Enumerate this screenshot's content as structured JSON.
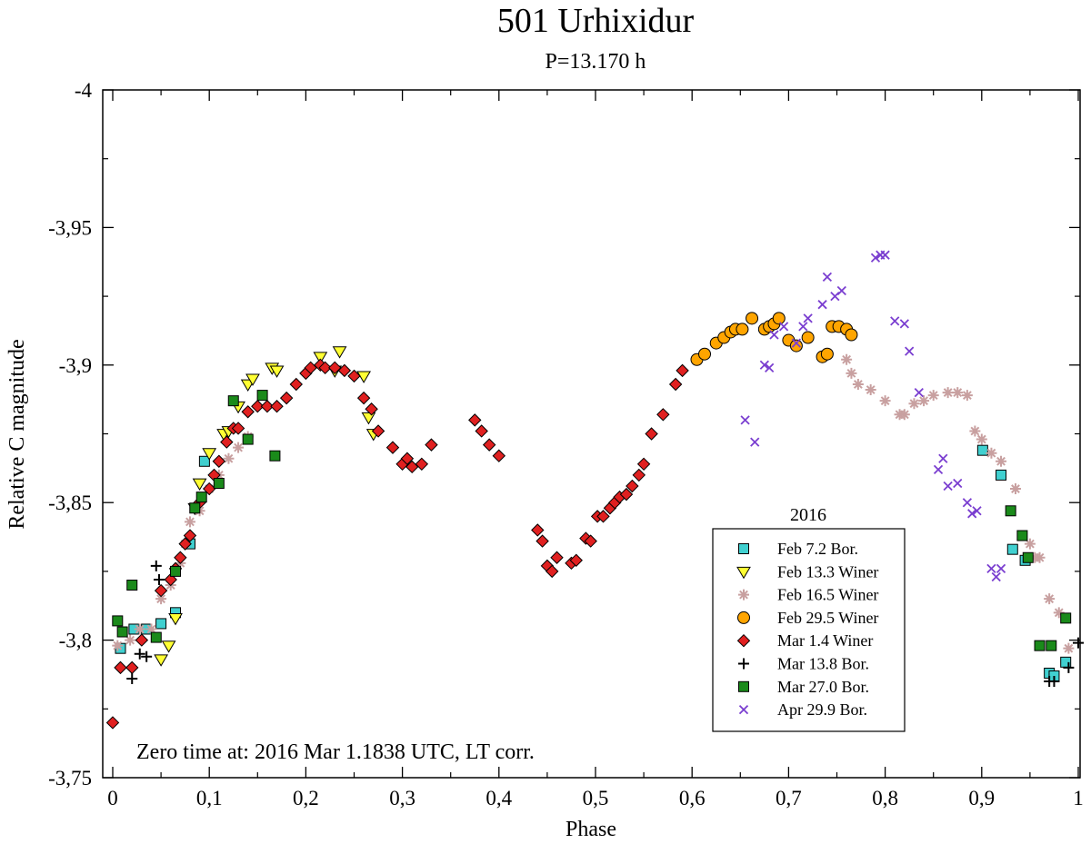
{
  "chart_data": {
    "type": "scatter",
    "title": "501 Urhixidur",
    "subtitle": "P=13.170 h",
    "xlabel": "Phase",
    "ylabel": "Relative C magnitude",
    "xlim": [
      0,
      1
    ],
    "ylim": [
      -3.75,
      -4.0
    ],
    "x_ticks": [
      {
        "value": 0,
        "label": "0"
      },
      {
        "value": 0.1,
        "label": "0,1"
      },
      {
        "value": 0.2,
        "label": "0,2"
      },
      {
        "value": 0.3,
        "label": "0,3"
      },
      {
        "value": 0.4,
        "label": "0,4"
      },
      {
        "value": 0.5,
        "label": "0,5"
      },
      {
        "value": 0.6,
        "label": "0,6"
      },
      {
        "value": 0.7,
        "label": "0,7"
      },
      {
        "value": 0.8,
        "label": "0,8"
      },
      {
        "value": 0.9,
        "label": "0,9"
      },
      {
        "value": 1.0,
        "label": "1"
      }
    ],
    "y_ticks": [
      {
        "value": -4.0,
        "label": "-4"
      },
      {
        "value": -3.95,
        "label": "-3,95"
      },
      {
        "value": -3.9,
        "label": "-3,9"
      },
      {
        "value": -3.85,
        "label": "-3,85"
      },
      {
        "value": -3.8,
        "label": "-3,8"
      },
      {
        "value": -3.75,
        "label": "-3,75"
      }
    ],
    "legend_title": "2016",
    "legend_position": "lower-right",
    "annotation": "Zero time at: 2016 Mar 1.1838 UTC,  LT corr.",
    "series": [
      {
        "name": "Feb 7.2 Bor.",
        "marker": "square",
        "color": "#40d0d0",
        "points": [
          [
            0.008,
            -3.797
          ],
          [
            0.022,
            -3.804
          ],
          [
            0.035,
            -3.804
          ],
          [
            0.05,
            -3.806
          ],
          [
            0.065,
            -3.81
          ],
          [
            0.08,
            -3.835
          ],
          [
            0.095,
            -3.865
          ],
          [
            0.901,
            -3.869
          ],
          [
            0.92,
            -3.86
          ],
          [
            0.932,
            -3.833
          ],
          [
            0.945,
            -3.829
          ],
          [
            0.97,
            -3.788
          ],
          [
            0.975,
            -3.787
          ],
          [
            0.987,
            -3.792
          ]
        ]
      },
      {
        "name": "Feb 13.3 Winer",
        "marker": "triangle-down",
        "color": "#ffff33",
        "points": [
          [
            0.05,
            -3.793
          ],
          [
            0.058,
            -3.798
          ],
          [
            0.065,
            -3.808
          ],
          [
            0.085,
            -3.848
          ],
          [
            0.09,
            -3.857
          ],
          [
            0.1,
            -3.868
          ],
          [
            0.115,
            -3.875
          ],
          [
            0.12,
            -3.876
          ],
          [
            0.13,
            -3.885
          ],
          [
            0.14,
            -3.893
          ],
          [
            0.145,
            -3.895
          ],
          [
            0.165,
            -3.899
          ],
          [
            0.17,
            -3.898
          ],
          [
            0.215,
            -3.903
          ],
          [
            0.23,
            -3.898
          ],
          [
            0.235,
            -3.905
          ],
          [
            0.26,
            -3.896
          ],
          [
            0.265,
            -3.881
          ],
          [
            0.27,
            -3.875
          ]
        ]
      },
      {
        "name": "Feb 16.5 Winer",
        "marker": "asterisk",
        "color": "#c8a0a0",
        "points": [
          [
            0.005,
            -3.798
          ],
          [
            0.018,
            -3.8
          ],
          [
            0.028,
            -3.804
          ],
          [
            0.04,
            -3.804
          ],
          [
            0.05,
            -3.815
          ],
          [
            0.06,
            -3.82
          ],
          [
            0.07,
            -3.828
          ],
          [
            0.075,
            -3.835
          ],
          [
            0.08,
            -3.843
          ],
          [
            0.09,
            -3.847
          ],
          [
            0.1,
            -3.855
          ],
          [
            0.11,
            -3.86
          ],
          [
            0.12,
            -3.866
          ],
          [
            0.13,
            -3.87
          ],
          [
            0.14,
            -3.874
          ],
          [
            0.76,
            -3.902
          ],
          [
            0.765,
            -3.897
          ],
          [
            0.772,
            -3.893
          ],
          [
            0.785,
            -3.891
          ],
          [
            0.8,
            -3.887
          ],
          [
            0.815,
            -3.882
          ],
          [
            0.82,
            -3.882
          ],
          [
            0.83,
            -3.886
          ],
          [
            0.84,
            -3.887
          ],
          [
            0.85,
            -3.889
          ],
          [
            0.865,
            -3.89
          ],
          [
            0.875,
            -3.89
          ],
          [
            0.885,
            -3.889
          ],
          [
            0.893,
            -3.876
          ],
          [
            0.9,
            -3.873
          ],
          [
            0.91,
            -3.868
          ],
          [
            0.92,
            -3.865
          ],
          [
            0.935,
            -3.855
          ],
          [
            0.95,
            -3.835
          ],
          [
            0.955,
            -3.83
          ],
          [
            0.96,
            -3.83
          ],
          [
            0.97,
            -3.815
          ],
          [
            0.98,
            -3.81
          ],
          [
            0.99,
            -3.797
          ]
        ]
      },
      {
        "name": "Feb 29.5 Winer",
        "marker": "circle",
        "color": "#ffa500",
        "points": [
          [
            0.605,
            -3.902
          ],
          [
            0.613,
            -3.904
          ],
          [
            0.625,
            -3.908
          ],
          [
            0.633,
            -3.91
          ],
          [
            0.64,
            -3.912
          ],
          [
            0.645,
            -3.913
          ],
          [
            0.652,
            -3.913
          ],
          [
            0.662,
            -3.917
          ],
          [
            0.675,
            -3.913
          ],
          [
            0.68,
            -3.914
          ],
          [
            0.685,
            -3.915
          ],
          [
            0.69,
            -3.917
          ],
          [
            0.7,
            -3.909
          ],
          [
            0.708,
            -3.907
          ],
          [
            0.72,
            -3.91
          ],
          [
            0.735,
            -3.903
          ],
          [
            0.74,
            -3.904
          ],
          [
            0.745,
            -3.914
          ],
          [
            0.752,
            -3.914
          ],
          [
            0.76,
            -3.913
          ],
          [
            0.765,
            -3.911
          ]
        ]
      },
      {
        "name": "Mar 1.4 Winer",
        "marker": "diamond",
        "color": "#e02020",
        "points": [
          [
            0.0,
            -3.77
          ],
          [
            0.008,
            -3.79
          ],
          [
            0.02,
            -3.79
          ],
          [
            0.03,
            -3.8
          ],
          [
            0.05,
            -3.818
          ],
          [
            0.06,
            -3.822
          ],
          [
            0.065,
            -3.826
          ],
          [
            0.07,
            -3.83
          ],
          [
            0.075,
            -3.835
          ],
          [
            0.08,
            -3.838
          ],
          [
            0.09,
            -3.85
          ],
          [
            0.1,
            -3.855
          ],
          [
            0.105,
            -3.86
          ],
          [
            0.11,
            -3.865
          ],
          [
            0.118,
            -3.872
          ],
          [
            0.125,
            -3.877
          ],
          [
            0.13,
            -3.877
          ],
          [
            0.14,
            -3.883
          ],
          [
            0.15,
            -3.885
          ],
          [
            0.16,
            -3.885
          ],
          [
            0.17,
            -3.885
          ],
          [
            0.18,
            -3.888
          ],
          [
            0.19,
            -3.893
          ],
          [
            0.2,
            -3.897
          ],
          [
            0.205,
            -3.899
          ],
          [
            0.215,
            -3.9
          ],
          [
            0.22,
            -3.899
          ],
          [
            0.23,
            -3.899
          ],
          [
            0.24,
            -3.898
          ],
          [
            0.25,
            -3.896
          ],
          [
            0.26,
            -3.888
          ],
          [
            0.268,
            -3.884
          ],
          [
            0.275,
            -3.876
          ],
          [
            0.29,
            -3.87
          ],
          [
            0.3,
            -3.864
          ],
          [
            0.305,
            -3.866
          ],
          [
            0.31,
            -3.863
          ],
          [
            0.32,
            -3.864
          ],
          [
            0.33,
            -3.871
          ],
          [
            0.375,
            -3.88
          ],
          [
            0.382,
            -3.876
          ],
          [
            0.39,
            -3.871
          ],
          [
            0.4,
            -3.867
          ],
          [
            0.44,
            -3.84
          ],
          [
            0.445,
            -3.836
          ],
          [
            0.45,
            -3.827
          ],
          [
            0.455,
            -3.825
          ],
          [
            0.46,
            -3.83
          ],
          [
            0.475,
            -3.828
          ],
          [
            0.48,
            -3.829
          ],
          [
            0.49,
            -3.837
          ],
          [
            0.495,
            -3.836
          ],
          [
            0.502,
            -3.845
          ],
          [
            0.508,
            -3.845
          ],
          [
            0.515,
            -3.848
          ],
          [
            0.52,
            -3.85
          ],
          [
            0.525,
            -3.852
          ],
          [
            0.532,
            -3.853
          ],
          [
            0.538,
            -3.856
          ],
          [
            0.545,
            -3.86
          ],
          [
            0.55,
            -3.864
          ],
          [
            0.558,
            -3.875
          ],
          [
            0.57,
            -3.882
          ],
          [
            0.583,
            -3.893
          ],
          [
            0.59,
            -3.898
          ]
        ]
      },
      {
        "name": "Mar 13.8 Bor.",
        "marker": "plus",
        "color": "#000000",
        "points": [
          [
            0.02,
            -3.786
          ],
          [
            0.028,
            -3.795
          ],
          [
            0.035,
            -3.794
          ],
          [
            0.045,
            -3.827
          ],
          [
            0.048,
            -3.822
          ],
          [
            0.97,
            -3.785
          ],
          [
            0.975,
            -3.785
          ],
          [
            0.99,
            -3.79
          ],
          [
            1.0,
            -3.799
          ]
        ]
      },
      {
        "name": "Mar 27.0 Bor.",
        "marker": "square",
        "color": "#1a8a1a",
        "points": [
          [
            0.005,
            -3.807
          ],
          [
            0.01,
            -3.803
          ],
          [
            0.02,
            -3.82
          ],
          [
            0.045,
            -3.801
          ],
          [
            0.065,
            -3.825
          ],
          [
            0.085,
            -3.848
          ],
          [
            0.092,
            -3.852
          ],
          [
            0.11,
            -3.857
          ],
          [
            0.125,
            -3.887
          ],
          [
            0.14,
            -3.873
          ],
          [
            0.155,
            -3.889
          ],
          [
            0.168,
            -3.867
          ],
          [
            0.93,
            -3.847
          ],
          [
            0.942,
            -3.838
          ],
          [
            0.948,
            -3.83
          ],
          [
            0.96,
            -3.798
          ],
          [
            0.972,
            -3.798
          ],
          [
            0.987,
            -3.808
          ]
        ]
      },
      {
        "name": "Apr 29.9 Bor.",
        "marker": "cross",
        "color": "#7a3ed0",
        "points": [
          [
            0.655,
            -3.88
          ],
          [
            0.665,
            -3.872
          ],
          [
            0.675,
            -3.9
          ],
          [
            0.68,
            -3.899
          ],
          [
            0.685,
            -3.911
          ],
          [
            0.695,
            -3.914
          ],
          [
            0.708,
            -3.908
          ],
          [
            0.715,
            -3.914
          ],
          [
            0.72,
            -3.917
          ],
          [
            0.735,
            -3.922
          ],
          [
            0.74,
            -3.932
          ],
          [
            0.748,
            -3.925
          ],
          [
            0.755,
            -3.927
          ],
          [
            0.79,
            -3.939
          ],
          [
            0.795,
            -3.94
          ],
          [
            0.8,
            -3.94
          ],
          [
            0.81,
            -3.916
          ],
          [
            0.82,
            -3.915
          ],
          [
            0.825,
            -3.905
          ],
          [
            0.835,
            -3.89
          ],
          [
            0.855,
            -3.862
          ],
          [
            0.86,
            -3.866
          ],
          [
            0.865,
            -3.856
          ],
          [
            0.875,
            -3.857
          ],
          [
            0.885,
            -3.85
          ],
          [
            0.89,
            -3.846
          ],
          [
            0.895,
            -3.847
          ],
          [
            0.91,
            -3.826
          ],
          [
            0.915,
            -3.823
          ],
          [
            0.92,
            -3.826
          ]
        ]
      }
    ]
  }
}
